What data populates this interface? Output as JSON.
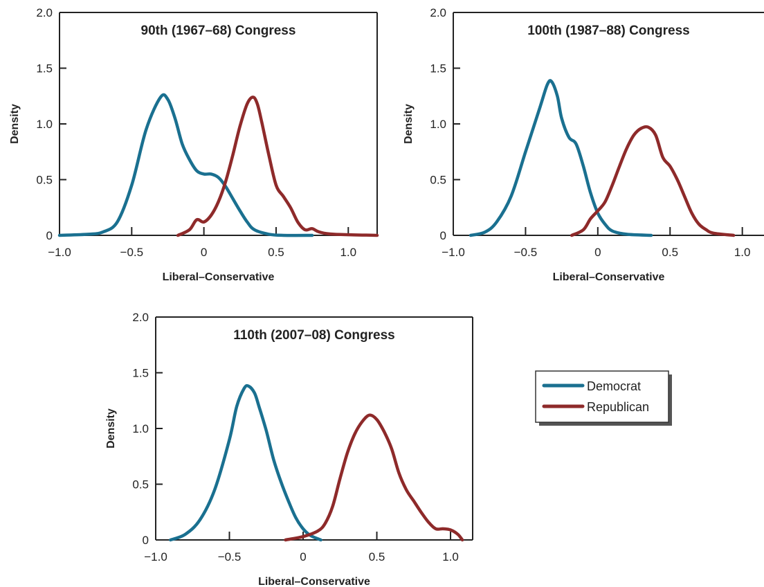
{
  "chart_data": [
    {
      "type": "line",
      "title": "90th (1967–68) Congress",
      "xlabel": "Liberal–Conservative",
      "ylabel": "Density",
      "xlim": [
        -1.0,
        1.2
      ],
      "ylim": [
        0,
        2.0
      ],
      "xticks": [
        -1.0,
        -0.5,
        0,
        0.5,
        1.0
      ],
      "xtick_labels": [
        "−1.0",
        "−0.5",
        "0",
        "0.5",
        "1.0"
      ],
      "yticks": [
        0,
        0.5,
        1.0,
        1.5,
        2.0
      ],
      "ytick_labels": [
        "0",
        "0.5",
        "1.0",
        "1.5",
        "2.0"
      ],
      "grid": false,
      "series": [
        {
          "name": "Democrat",
          "color": "#1a7090",
          "points": [
            [
              -1.0,
              0.0
            ],
            [
              -0.8,
              0.01
            ],
            [
              -0.7,
              0.03
            ],
            [
              -0.6,
              0.12
            ],
            [
              -0.5,
              0.45
            ],
            [
              -0.4,
              0.95
            ],
            [
              -0.3,
              1.24
            ],
            [
              -0.25,
              1.22
            ],
            [
              -0.2,
              1.05
            ],
            [
              -0.15,
              0.82
            ],
            [
              -0.1,
              0.68
            ],
            [
              -0.05,
              0.58
            ],
            [
              0.0,
              0.55
            ],
            [
              0.05,
              0.55
            ],
            [
              0.1,
              0.52
            ],
            [
              0.15,
              0.44
            ],
            [
              0.2,
              0.33
            ],
            [
              0.25,
              0.22
            ],
            [
              0.3,
              0.12
            ],
            [
              0.35,
              0.05
            ],
            [
              0.45,
              0.01
            ],
            [
              0.55,
              0.0
            ],
            [
              0.75,
              0.0
            ]
          ]
        },
        {
          "name": "Republican",
          "color": "#8e2a2a",
          "points": [
            [
              -0.18,
              0.0
            ],
            [
              -0.1,
              0.05
            ],
            [
              -0.05,
              0.14
            ],
            [
              0.0,
              0.12
            ],
            [
              0.05,
              0.18
            ],
            [
              0.1,
              0.3
            ],
            [
              0.15,
              0.48
            ],
            [
              0.2,
              0.72
            ],
            [
              0.25,
              0.98
            ],
            [
              0.3,
              1.18
            ],
            [
              0.34,
              1.24
            ],
            [
              0.37,
              1.18
            ],
            [
              0.4,
              1.02
            ],
            [
              0.45,
              0.72
            ],
            [
              0.5,
              0.45
            ],
            [
              0.55,
              0.35
            ],
            [
              0.6,
              0.25
            ],
            [
              0.65,
              0.12
            ],
            [
              0.7,
              0.05
            ],
            [
              0.75,
              0.06
            ],
            [
              0.8,
              0.03
            ],
            [
              0.9,
              0.01
            ],
            [
              1.2,
              0.0
            ]
          ]
        }
      ]
    },
    {
      "type": "line",
      "title": "100th (1987–88) Congress",
      "xlabel": "Liberal–Conservative",
      "ylabel": "Density",
      "xlim": [
        -1.0,
        1.15
      ],
      "ylim": [
        0,
        2.0
      ],
      "xticks": [
        -1.0,
        -0.5,
        0,
        0.5,
        1.0
      ],
      "xtick_labels": [
        "−1.0",
        "−0.5",
        "0",
        "0.5",
        "1.0"
      ],
      "yticks": [
        0,
        0.5,
        1.0,
        1.5,
        2.0
      ],
      "ytick_labels": [
        "0",
        "0.5",
        "1.0",
        "1.5",
        "2.0"
      ],
      "grid": false,
      "series": [
        {
          "name": "Democrat",
          "color": "#1a7090",
          "points": [
            [
              -0.88,
              0.0
            ],
            [
              -0.78,
              0.03
            ],
            [
              -0.7,
              0.12
            ],
            [
              -0.6,
              0.35
            ],
            [
              -0.5,
              0.75
            ],
            [
              -0.4,
              1.15
            ],
            [
              -0.35,
              1.35
            ],
            [
              -0.32,
              1.38
            ],
            [
              -0.28,
              1.25
            ],
            [
              -0.25,
              1.05
            ],
            [
              -0.2,
              0.88
            ],
            [
              -0.15,
              0.82
            ],
            [
              -0.1,
              0.62
            ],
            [
              -0.05,
              0.38
            ],
            [
              0.0,
              0.2
            ],
            [
              0.05,
              0.1
            ],
            [
              0.1,
              0.04
            ],
            [
              0.2,
              0.01
            ],
            [
              0.37,
              0.0
            ]
          ]
        },
        {
          "name": "Republican",
          "color": "#8e2a2a",
          "points": [
            [
              -0.18,
              0.0
            ],
            [
              -0.1,
              0.05
            ],
            [
              -0.05,
              0.15
            ],
            [
              0.0,
              0.22
            ],
            [
              0.05,
              0.3
            ],
            [
              0.1,
              0.45
            ],
            [
              0.15,
              0.62
            ],
            [
              0.2,
              0.78
            ],
            [
              0.25,
              0.9
            ],
            [
              0.3,
              0.96
            ],
            [
              0.35,
              0.97
            ],
            [
              0.4,
              0.9
            ],
            [
              0.45,
              0.7
            ],
            [
              0.5,
              0.62
            ],
            [
              0.55,
              0.5
            ],
            [
              0.6,
              0.35
            ],
            [
              0.65,
              0.2
            ],
            [
              0.7,
              0.1
            ],
            [
              0.75,
              0.05
            ],
            [
              0.8,
              0.02
            ],
            [
              0.94,
              0.0
            ]
          ]
        }
      ]
    },
    {
      "type": "line",
      "title": "110th (2007–08) Congress",
      "xlabel": "Liberal–Conservative",
      "ylabel": "Density",
      "xlim": [
        -1.0,
        1.15
      ],
      "ylim": [
        0,
        2.0
      ],
      "xticks": [
        -1.0,
        -0.5,
        0,
        0.5,
        1.0
      ],
      "xtick_labels": [
        "−1.0",
        "−0.5",
        "0",
        "0.5",
        "1.0"
      ],
      "yticks": [
        0,
        0.5,
        1.0,
        1.5,
        2.0
      ],
      "ytick_labels": [
        "0",
        "0.5",
        "1.0",
        "1.5",
        "2.0"
      ],
      "grid": false,
      "series": [
        {
          "name": "Democrat",
          "color": "#1a7090",
          "points": [
            [
              -0.9,
              0.0
            ],
            [
              -0.8,
              0.05
            ],
            [
              -0.7,
              0.18
            ],
            [
              -0.6,
              0.45
            ],
            [
              -0.5,
              0.9
            ],
            [
              -0.45,
              1.2
            ],
            [
              -0.4,
              1.36
            ],
            [
              -0.37,
              1.38
            ],
            [
              -0.33,
              1.32
            ],
            [
              -0.3,
              1.2
            ],
            [
              -0.25,
              0.98
            ],
            [
              -0.2,
              0.72
            ],
            [
              -0.15,
              0.52
            ],
            [
              -0.1,
              0.35
            ],
            [
              -0.05,
              0.2
            ],
            [
              0.0,
              0.1
            ],
            [
              0.05,
              0.04
            ],
            [
              0.12,
              0.0
            ]
          ]
        },
        {
          "name": "Republican",
          "color": "#8e2a2a",
          "points": [
            [
              -0.12,
              0.0
            ],
            [
              0.0,
              0.03
            ],
            [
              0.1,
              0.08
            ],
            [
              0.15,
              0.15
            ],
            [
              0.2,
              0.3
            ],
            [
              0.25,
              0.55
            ],
            [
              0.3,
              0.78
            ],
            [
              0.35,
              0.95
            ],
            [
              0.4,
              1.06
            ],
            [
              0.45,
              1.12
            ],
            [
              0.5,
              1.08
            ],
            [
              0.55,
              0.97
            ],
            [
              0.6,
              0.82
            ],
            [
              0.65,
              0.6
            ],
            [
              0.7,
              0.45
            ],
            [
              0.75,
              0.35
            ],
            [
              0.8,
              0.25
            ],
            [
              0.85,
              0.16
            ],
            [
              0.9,
              0.1
            ],
            [
              0.95,
              0.1
            ],
            [
              1.0,
              0.09
            ],
            [
              1.05,
              0.05
            ],
            [
              1.08,
              0.0
            ]
          ]
        }
      ]
    }
  ],
  "legend": {
    "items": [
      {
        "label": "Democrat",
        "color": "#1a7090"
      },
      {
        "label": "Republican",
        "color": "#8e2a2a"
      }
    ]
  }
}
